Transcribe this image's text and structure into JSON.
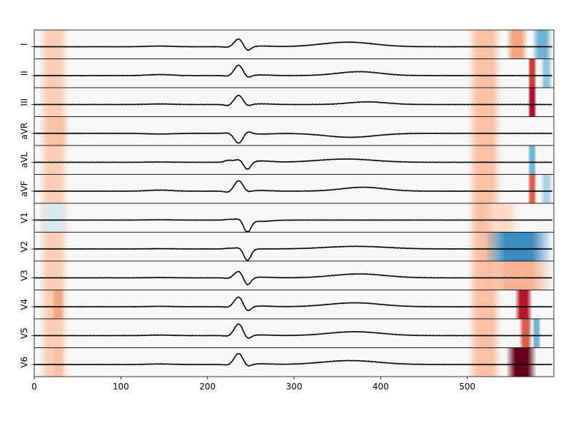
{
  "chart_data": {
    "type": "line",
    "title": "",
    "xlabel": "",
    "ylabel": "",
    "xlim": [
      0,
      600
    ],
    "x_ticks": [
      0,
      100,
      200,
      300,
      400,
      500
    ],
    "x_tick_labels": [
      "0",
      "100",
      "200",
      "300",
      "400",
      "500"
    ],
    "leads": [
      "I",
      "II",
      "III",
      "aVR",
      "aVL",
      "aVF",
      "V1",
      "V2",
      "V3",
      "V4",
      "V5",
      "V6"
    ],
    "line_color": "#000000",
    "heatmap_colormap": [
      "#67001f",
      "#b2182b",
      "#d6604d",
      "#f4a582",
      "#fddbc7",
      "#f7f7f7",
      "#d1e5f0",
      "#92c5de",
      "#4393c3",
      "#2166ac"
    ],
    "background_color": "#f7f7f7",
    "series": [
      {
        "name": "I",
        "waves": {
          "baseline": 0.0,
          "p": 0.05,
          "q": -0.05,
          "r": 0.6,
          "s": -0.35,
          "st": 0.05,
          "t": 0.35,
          "t_center": 362,
          "t_width": 30
        }
      },
      {
        "name": "II",
        "waves": {
          "baseline": 0.0,
          "p": 0.08,
          "q": -0.05,
          "r": 0.8,
          "s": -0.2,
          "st": 0.05,
          "t": 0.3,
          "t_center": 375,
          "t_width": 25
        }
      },
      {
        "name": "III",
        "waves": {
          "baseline": 0.0,
          "p": 0.04,
          "q": -0.1,
          "r": 0.7,
          "s": -0.15,
          "st": 0.05,
          "t": 0.2,
          "t_center": 385,
          "t_width": 22
        }
      },
      {
        "name": "aVR",
        "waves": {
          "baseline": 0.0,
          "p": -0.05,
          "q": 0.05,
          "r": -0.75,
          "s": 0.2,
          "st": -0.05,
          "t": -0.3,
          "t_center": 365,
          "t_width": 28
        }
      },
      {
        "name": "aVL",
        "waves": {
          "baseline": 0.0,
          "p": 0.02,
          "q": 0.15,
          "r": 0.2,
          "s": -0.6,
          "st": 0.1,
          "t": 0.25,
          "t_center": 360,
          "t_width": 32
        }
      },
      {
        "name": "aVF",
        "waves": {
          "baseline": 0.0,
          "p": 0.08,
          "q": -0.1,
          "r": 0.8,
          "s": -0.1,
          "st": 0.05,
          "t": 0.3,
          "t_center": 380,
          "t_width": 25
        }
      },
      {
        "name": "V1",
        "waves": {
          "baseline": 0.0,
          "p": 0.02,
          "q": 0.05,
          "r": 0.1,
          "s": -0.95,
          "st": -0.1,
          "t": 0.0,
          "t_center": 370,
          "t_width": 30
        }
      },
      {
        "name": "V2",
        "waves": {
          "baseline": 0.0,
          "p": 0.02,
          "q": 0.05,
          "r": 0.1,
          "s": -0.9,
          "st": 0.0,
          "t": 0.2,
          "t_center": 372,
          "t_width": 35
        }
      },
      {
        "name": "V3",
        "waves": {
          "baseline": 0.0,
          "p": 0.02,
          "q": -0.05,
          "r": 0.5,
          "s": -0.6,
          "st": 0.05,
          "t": 0.3,
          "t_center": 375,
          "t_width": 30
        }
      },
      {
        "name": "V4",
        "waves": {
          "baseline": 0.0,
          "p": 0.03,
          "q": -0.05,
          "r": 0.75,
          "s": -0.4,
          "st": 0.05,
          "t": 0.3,
          "t_center": 370,
          "t_width": 30
        }
      },
      {
        "name": "V5",
        "waves": {
          "baseline": 0.0,
          "p": 0.04,
          "q": -0.05,
          "r": 0.9,
          "s": -0.3,
          "st": 0.05,
          "t": 0.3,
          "t_center": 370,
          "t_width": 30
        }
      },
      {
        "name": "V6",
        "waves": {
          "baseline": 0.0,
          "p": 0.04,
          "q": -0.05,
          "r": 0.85,
          "s": -0.2,
          "st": 0.05,
          "t": 0.3,
          "t_center": 365,
          "t_width": 32
        }
      }
    ],
    "heatmap_bands": [
      {
        "lead": "all",
        "x_start": 5,
        "x_end": 40,
        "value": 0.25
      },
      {
        "lead": "all",
        "x_start": 500,
        "x_end": 540,
        "value": 0.3
      },
      {
        "lead": "I",
        "x_start": 545,
        "x_end": 570,
        "value": 0.4
      },
      {
        "lead": "I",
        "x_start": 575,
        "x_end": 598,
        "value": -0.6
      },
      {
        "lead": "II",
        "x_start": 570,
        "x_end": 580,
        "value": 0.7
      },
      {
        "lead": "II",
        "x_start": 585,
        "x_end": 598,
        "value": -0.5
      },
      {
        "lead": "III",
        "x_start": 570,
        "x_end": 580,
        "value": 0.85
      },
      {
        "lead": "aVR",
        "x_start": 10,
        "x_end": 40,
        "value": 0.3
      },
      {
        "lead": "aVL",
        "x_start": 570,
        "x_end": 580,
        "value": -0.6
      },
      {
        "lead": "aVF",
        "x_start": 570,
        "x_end": 580,
        "value": 0.6
      },
      {
        "lead": "aVF",
        "x_start": 585,
        "x_end": 598,
        "value": -0.4
      },
      {
        "lead": "V1",
        "x_start": 520,
        "x_end": 560,
        "value": 0.2
      },
      {
        "lead": "V1",
        "x_start": 5,
        "x_end": 40,
        "value": -0.2
      },
      {
        "lead": "V2",
        "x_start": 520,
        "x_end": 598,
        "value": -0.8
      },
      {
        "lead": "V3",
        "x_start": 520,
        "x_end": 598,
        "value": 0.35
      },
      {
        "lead": "V4",
        "x_start": 555,
        "x_end": 575,
        "value": 0.8
      },
      {
        "lead": "V4",
        "x_start": 20,
        "x_end": 35,
        "value": 0.4
      },
      {
        "lead": "V5",
        "x_start": 560,
        "x_end": 575,
        "value": 0.6
      },
      {
        "lead": "V5",
        "x_start": 575,
        "x_end": 585,
        "value": -0.6
      },
      {
        "lead": "V6",
        "x_start": 545,
        "x_end": 580,
        "value": 1.0
      },
      {
        "lead": "V6",
        "x_start": 20,
        "x_end": 35,
        "value": 0.3
      }
    ]
  }
}
